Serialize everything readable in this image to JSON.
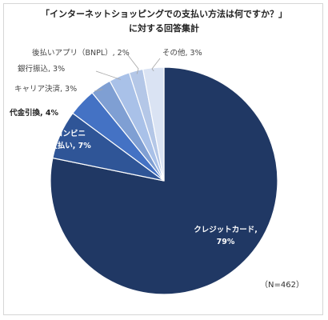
{
  "chart_data": {
    "type": "pie",
    "title": [
      "「インターネットショッピングでの支払い方法は何ですか？」",
      "に対する回答集計"
    ],
    "note": "（N=462）",
    "slices": [
      {
        "label": "クレジットカード",
        "value": 79,
        "text": "79%",
        "color": "#203864"
      },
      {
        "label": "コンビニ支払い",
        "value": 7,
        "text": "7%",
        "color": "#2f5597"
      },
      {
        "label": "代金引換",
        "value": 4,
        "text": "4%",
        "color": "#4472c4"
      },
      {
        "label": "キャリア決済",
        "value": 3,
        "text": "3%",
        "color": "#7f9fd3"
      },
      {
        "label": "銀行振込",
        "value": 3,
        "text": "3%",
        "color": "#a9c1e8"
      },
      {
        "label": "後払いアプリ（BNPL）",
        "value": 2,
        "text": "2%",
        "color": "#b4c7e7"
      },
      {
        "label": "その他",
        "value": 3,
        "text": "3%",
        "color": "#dae3f3"
      }
    ]
  }
}
